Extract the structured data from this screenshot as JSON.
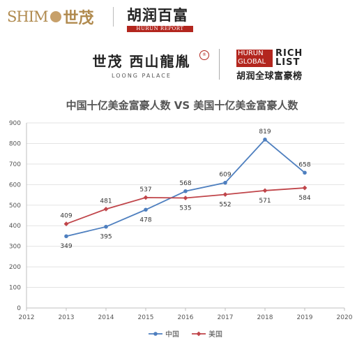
{
  "header": {
    "shimao_latin": "SHIM",
    "shimao_cn": "世茂",
    "hurun_cn": "胡润百富",
    "hurun_report": "HURUN REPORT"
  },
  "sponsor": {
    "palace_cn": "世茂 西山龍胤",
    "palace_en": "LOONG PALACE",
    "grl_red_line1": "HURUN",
    "grl_red_line2": "GLOBAL",
    "grl_black_line1": "RICH",
    "grl_black_line2": "LIST",
    "grl_cn": "胡润全球富豪榜"
  },
  "colors": {
    "china": "#4e7fbf",
    "usa": "#c0454a",
    "brand_gold": "#b08a4e",
    "brand_red": "#b3261e"
  },
  "chart_data": {
    "type": "line",
    "title": "中国十亿美金富豪人数 VS 美国十亿美金富豪人数",
    "xlim": [
      2012,
      2020
    ],
    "ylim": [
      0,
      900
    ],
    "x_ticks": [
      2012,
      2013,
      2014,
      2015,
      2016,
      2017,
      2018,
      2019,
      2020
    ],
    "y_ticks": [
      0,
      100,
      200,
      300,
      400,
      500,
      600,
      700,
      800,
      900
    ],
    "grid": "horizontal",
    "legend_position": "bottom",
    "x": [
      2013,
      2014,
      2015,
      2016,
      2017,
      2018,
      2019
    ],
    "series": [
      {
        "name": "中国",
        "values": [
          349,
          395,
          478,
          568,
          609,
          819,
          658
        ],
        "label_side": [
          "below",
          "below",
          "below",
          "above",
          "above",
          "above",
          "above"
        ]
      },
      {
        "name": "美国",
        "values": [
          409,
          481,
          537,
          535,
          552,
          571,
          584
        ],
        "label_side": [
          "above",
          "above",
          "above",
          "below",
          "below",
          "below",
          "below"
        ]
      }
    ]
  }
}
